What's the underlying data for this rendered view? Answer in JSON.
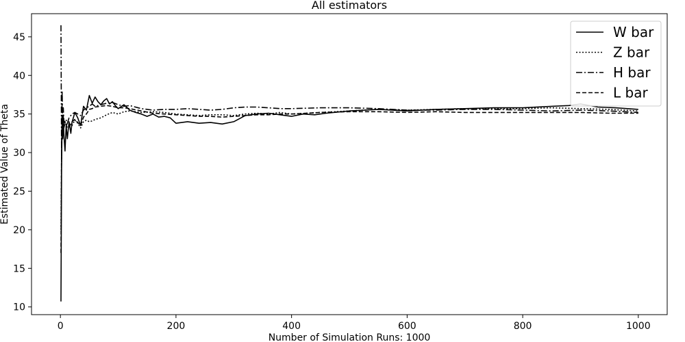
{
  "chart_data": {
    "type": "line",
    "title": "All estimators",
    "xlabel": "Number of Simulation Runs: 1000",
    "ylabel": "Estimated Value of Theta",
    "xlim": [
      -50,
      1050
    ],
    "ylim": [
      9,
      48
    ],
    "xticks": [
      0,
      200,
      400,
      600,
      800,
      1000
    ],
    "yticks": [
      10,
      15,
      20,
      25,
      30,
      35,
      40,
      45
    ],
    "grid": false,
    "legend_position": "top-right",
    "series": [
      {
        "name": "W bar",
        "style": "solid",
        "x": [
          1,
          2,
          3,
          4,
          5,
          6,
          8,
          10,
          12,
          15,
          18,
          20,
          25,
          30,
          35,
          40,
          45,
          50,
          55,
          60,
          65,
          70,
          75,
          80,
          85,
          90,
          95,
          100,
          110,
          120,
          130,
          140,
          150,
          160,
          170,
          180,
          190,
          200,
          210,
          220,
          240,
          260,
          280,
          300,
          320,
          340,
          360,
          380,
          400,
          420,
          440,
          460,
          500,
          550,
          600,
          650,
          700,
          750,
          800,
          850,
          880,
          900,
          930,
          960,
          1000
        ],
        "y": [
          10.7,
          28.0,
          34.5,
          31.8,
          34.7,
          32.5,
          30.2,
          33.5,
          31.8,
          34.0,
          32.5,
          33.9,
          35.2,
          34.5,
          33.5,
          36.0,
          35.5,
          37.4,
          36.4,
          37.2,
          36.6,
          36.2,
          36.7,
          37.0,
          36.3,
          36.6,
          36.1,
          35.7,
          36.2,
          35.5,
          35.2,
          35.0,
          34.7,
          35.0,
          34.6,
          34.7,
          34.5,
          33.8,
          33.9,
          34.0,
          33.8,
          33.9,
          33.7,
          34.0,
          34.8,
          35.0,
          35.1,
          34.9,
          34.7,
          35.0,
          34.9,
          35.1,
          35.4,
          35.6,
          35.4,
          35.6,
          35.7,
          35.8,
          35.8,
          36.0,
          36.1,
          36.3,
          35.9,
          35.8,
          35.6
        ]
      },
      {
        "name": "Z bar",
        "style": "dotted",
        "x": [
          1,
          2,
          3,
          4,
          5,
          6,
          8,
          10,
          12,
          15,
          20,
          25,
          30,
          35,
          40,
          45,
          50,
          55,
          60,
          70,
          80,
          90,
          100,
          110,
          120,
          140,
          160,
          180,
          200,
          220,
          240,
          260,
          280,
          300,
          320,
          340,
          360,
          380,
          400,
          450,
          500,
          550,
          600,
          650,
          700,
          750,
          800,
          850,
          900,
          950,
          1000
        ],
        "y": [
          20.0,
          30.0,
          33.0,
          32.5,
          33.8,
          33.3,
          34.0,
          33.8,
          33.6,
          33.5,
          33.5,
          34.2,
          33.8,
          33.2,
          34.0,
          34.2,
          34.0,
          34.1,
          34.3,
          34.5,
          34.9,
          35.2,
          35.0,
          35.3,
          35.4,
          35.2,
          35.3,
          35.2,
          35.0,
          34.9,
          34.8,
          34.9,
          34.9,
          34.8,
          35.0,
          35.1,
          35.0,
          35.2,
          35.0,
          35.2,
          35.4,
          35.6,
          35.5,
          35.6,
          35.7,
          35.7,
          35.7,
          35.8,
          35.7,
          35.6,
          35.4
        ]
      },
      {
        "name": "H bar",
        "style": "dashdot",
        "x": [
          1,
          2,
          3,
          4,
          5,
          6,
          8,
          10,
          12,
          15,
          20,
          25,
          30,
          35,
          40,
          45,
          50,
          55,
          60,
          70,
          80,
          90,
          100,
          110,
          120,
          140,
          160,
          180,
          200,
          220,
          240,
          260,
          280,
          300,
          320,
          340,
          360,
          380,
          400,
          450,
          500,
          550,
          600,
          650,
          700,
          750,
          800,
          850,
          900,
          950,
          1000
        ],
        "y": [
          46.5,
          29.0,
          38.0,
          33.5,
          35.8,
          34.2,
          33.8,
          34.2,
          33.8,
          34.5,
          35.0,
          35.2,
          35.0,
          34.8,
          35.5,
          35.8,
          36.0,
          36.3,
          36.0,
          36.2,
          36.4,
          36.5,
          36.2,
          36.0,
          36.1,
          35.7,
          35.5,
          35.6,
          35.6,
          35.7,
          35.6,
          35.5,
          35.6,
          35.8,
          35.9,
          35.9,
          35.8,
          35.7,
          35.7,
          35.8,
          35.8,
          35.7,
          35.5,
          35.5,
          35.6,
          35.6,
          35.5,
          35.4,
          35.5,
          35.4,
          35.2
        ]
      },
      {
        "name": "L bar",
        "style": "dashed",
        "x": [
          1,
          2,
          3,
          4,
          5,
          6,
          8,
          10,
          12,
          15,
          20,
          25,
          30,
          35,
          40,
          45,
          50,
          55,
          60,
          70,
          80,
          90,
          100,
          110,
          120,
          140,
          160,
          180,
          200,
          220,
          240,
          260,
          280,
          300,
          320,
          340,
          360,
          380,
          400,
          450,
          500,
          550,
          600,
          650,
          700,
          750,
          800,
          850,
          900,
          950,
          1000
        ],
        "y": [
          17.0,
          31.0,
          34.0,
          32.6,
          34.5,
          33.2,
          33.8,
          33.6,
          33.2,
          33.3,
          34.0,
          34.3,
          33.9,
          33.5,
          34.6,
          35.0,
          35.6,
          35.7,
          35.9,
          36.0,
          36.1,
          36.0,
          35.8,
          35.8,
          35.7,
          35.4,
          35.1,
          35.0,
          34.9,
          34.8,
          34.7,
          34.7,
          34.6,
          34.7,
          34.8,
          34.9,
          34.9,
          35.0,
          35.0,
          35.2,
          35.3,
          35.3,
          35.2,
          35.3,
          35.2,
          35.2,
          35.2,
          35.2,
          35.2,
          35.1,
          35.1
        ]
      }
    ]
  }
}
